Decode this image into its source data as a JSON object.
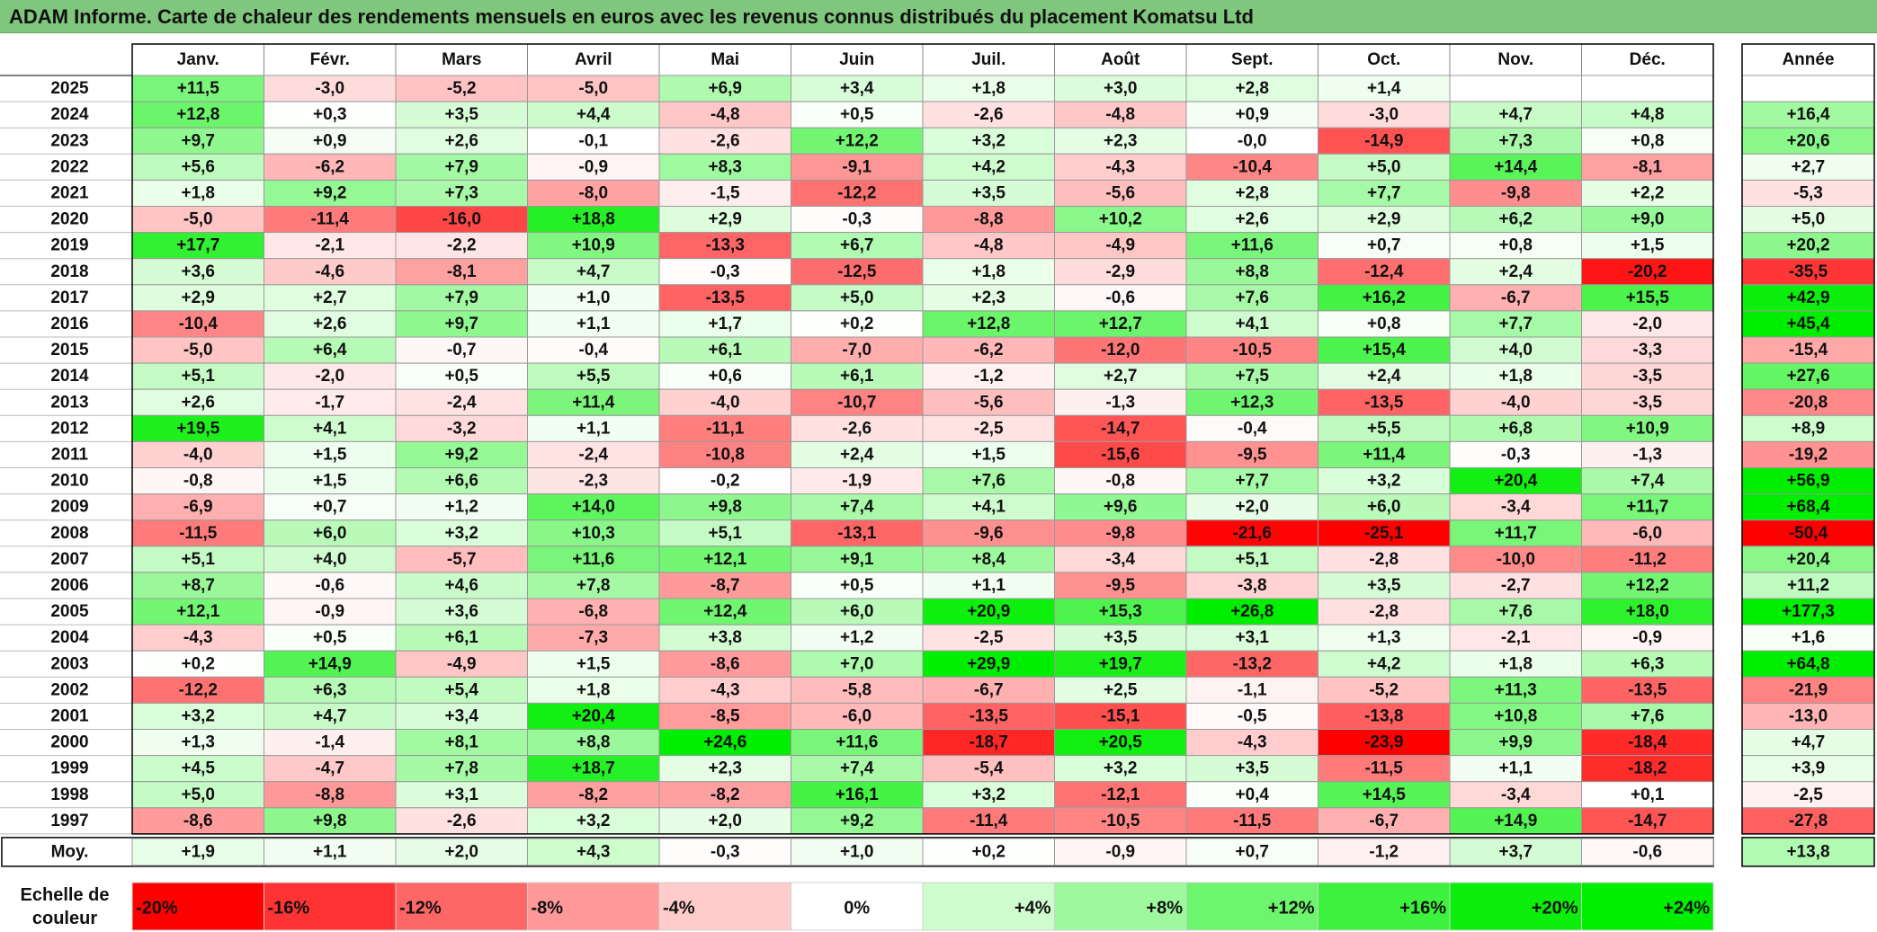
{
  "title": "ADAM Informe. Carte de chaleur des rendements mensuels en euros avec les revenus connus distribués du placement Komatsu Ltd",
  "colors": {
    "title_bg": "#80c77e",
    "strong_negative": "#ff0000",
    "strong_positive": "#00ee00",
    "neutral": "#ffffff"
  },
  "chart_data": {
    "type": "heatmap",
    "months": [
      "Janv.",
      "Févr.",
      "Mars",
      "Avril",
      "Mai",
      "Juin",
      "Juil.",
      "Août",
      "Sept.",
      "Oct.",
      "Nov.",
      "Déc."
    ],
    "annual_header": "Année",
    "rows": [
      {
        "year": "2025",
        "values": [
          "+11,5",
          "-3,0",
          "-5,2",
          "-5,0",
          "+6,9",
          "+3,4",
          "+1,8",
          "+3,0",
          "+2,8",
          "+1,4",
          "",
          ""
        ],
        "annual": ""
      },
      {
        "year": "2024",
        "values": [
          "+12,8",
          "+0,3",
          "+3,5",
          "+4,4",
          "-4,8",
          "+0,5",
          "-2,6",
          "-4,8",
          "+0,9",
          "-3,0",
          "+4,7",
          "+4,8"
        ],
        "annual": "+16,4"
      },
      {
        "year": "2023",
        "values": [
          "+9,7",
          "+0,9",
          "+2,6",
          "-0,1",
          "-2,6",
          "+12,2",
          "+3,2",
          "+2,3",
          "-0,0",
          "-14,9",
          "+7,3",
          "+0,8"
        ],
        "annual": "+20,6"
      },
      {
        "year": "2022",
        "values": [
          "+5,6",
          "-6,2",
          "+7,9",
          "-0,9",
          "+8,3",
          "-9,1",
          "+4,2",
          "-4,3",
          "-10,4",
          "+5,0",
          "+14,4",
          "-8,1"
        ],
        "annual": "+2,7"
      },
      {
        "year": "2021",
        "values": [
          "+1,8",
          "+9,2",
          "+7,3",
          "-8,0",
          "-1,5",
          "-12,2",
          "+3,5",
          "-5,6",
          "+2,8",
          "+7,7",
          "-9,8",
          "+2,2"
        ],
        "annual": "-5,3"
      },
      {
        "year": "2020",
        "values": [
          "-5,0",
          "-11,4",
          "-16,0",
          "+18,8",
          "+2,9",
          "-0,3",
          "-8,8",
          "+10,2",
          "+2,6",
          "+2,9",
          "+6,2",
          "+9,0"
        ],
        "annual": "+5,0"
      },
      {
        "year": "2019",
        "values": [
          "+17,7",
          "-2,1",
          "-2,2",
          "+10,9",
          "-13,3",
          "+6,7",
          "-4,8",
          "-4,9",
          "+11,6",
          "+0,7",
          "+0,8",
          "+1,5"
        ],
        "annual": "+20,2"
      },
      {
        "year": "2018",
        "values": [
          "+3,6",
          "-4,6",
          "-8,1",
          "+4,7",
          "-0,3",
          "-12,5",
          "+1,8",
          "-2,9",
          "+8,8",
          "-12,4",
          "+2,4",
          "-20,2"
        ],
        "annual": "-35,5"
      },
      {
        "year": "2017",
        "values": [
          "+2,9",
          "+2,7",
          "+7,9",
          "+1,0",
          "-13,5",
          "+5,0",
          "+2,3",
          "-0,6",
          "+7,6",
          "+16,2",
          "-6,7",
          "+15,5"
        ],
        "annual": "+42,9"
      },
      {
        "year": "2016",
        "values": [
          "-10,4",
          "+2,6",
          "+9,7",
          "+1,1",
          "+1,7",
          "+0,2",
          "+12,8",
          "+12,7",
          "+4,1",
          "+0,8",
          "+7,7",
          "-2,0"
        ],
        "annual": "+45,4"
      },
      {
        "year": "2015",
        "values": [
          "-5,0",
          "+6,4",
          "-0,7",
          "-0,4",
          "+6,1",
          "-7,0",
          "-6,2",
          "-12,0",
          "-10,5",
          "+15,4",
          "+4,0",
          "-3,3"
        ],
        "annual": "-15,4"
      },
      {
        "year": "2014",
        "values": [
          "+5,1",
          "-2,0",
          "+0,5",
          "+5,5",
          "+0,6",
          "+6,1",
          "-1,2",
          "+2,7",
          "+7,5",
          "+2,4",
          "+1,8",
          "-3,5"
        ],
        "annual": "+27,6"
      },
      {
        "year": "2013",
        "values": [
          "+2,6",
          "-1,7",
          "-2,4",
          "+11,4",
          "-4,0",
          "-10,7",
          "-5,6",
          "-1,3",
          "+12,3",
          "-13,5",
          "-4,0",
          "-3,5"
        ],
        "annual": "-20,8"
      },
      {
        "year": "2012",
        "values": [
          "+19,5",
          "+4,1",
          "-3,2",
          "+1,1",
          "-11,1",
          "-2,6",
          "-2,5",
          "-14,7",
          "-0,4",
          "+5,5",
          "+6,8",
          "+10,9"
        ],
        "annual": "+8,9"
      },
      {
        "year": "2011",
        "values": [
          "-4,0",
          "+1,5",
          "+9,2",
          "-2,4",
          "-10,8",
          "+2,4",
          "+1,5",
          "-15,6",
          "-9,5",
          "+11,4",
          "-0,3",
          "-1,3"
        ],
        "annual": "-19,2"
      },
      {
        "year": "2010",
        "values": [
          "-0,8",
          "+1,5",
          "+6,6",
          "-2,3",
          "-0,2",
          "-1,9",
          "+7,6",
          "-0,8",
          "+7,7",
          "+3,2",
          "+20,4",
          "+7,4"
        ],
        "annual": "+56,9"
      },
      {
        "year": "2009",
        "values": [
          "-6,9",
          "+0,7",
          "+1,2",
          "+14,0",
          "+9,8",
          "+7,4",
          "+4,1",
          "+9,6",
          "+2,0",
          "+6,0",
          "-3,4",
          "+11,7"
        ],
        "annual": "+68,4"
      },
      {
        "year": "2008",
        "values": [
          "-11,5",
          "+6,0",
          "+3,2",
          "+10,3",
          "+5,1",
          "-13,1",
          "-9,6",
          "-9,8",
          "-21,6",
          "-25,1",
          "+11,7",
          "-6,0"
        ],
        "annual": "-50,4"
      },
      {
        "year": "2007",
        "values": [
          "+5,1",
          "+4,0",
          "-5,7",
          "+11,6",
          "+12,1",
          "+9,1",
          "+8,4",
          "-3,4",
          "+5,1",
          "-2,8",
          "-10,0",
          "-11,2"
        ],
        "annual": "+20,4"
      },
      {
        "year": "2006",
        "values": [
          "+8,7",
          "-0,6",
          "+4,6",
          "+7,8",
          "-8,7",
          "+0,5",
          "+1,1",
          "-9,5",
          "-3,8",
          "+3,5",
          "-2,7",
          "+12,2"
        ],
        "annual": "+11,2"
      },
      {
        "year": "2005",
        "values": [
          "+12,1",
          "-0,9",
          "+3,6",
          "-6,8",
          "+12,4",
          "+6,0",
          "+20,9",
          "+15,3",
          "+26,8",
          "-2,8",
          "+7,6",
          "+18,0"
        ],
        "annual": "+177,3"
      },
      {
        "year": "2004",
        "values": [
          "-4,3",
          "+0,5",
          "+6,1",
          "-7,3",
          "+3,8",
          "+1,2",
          "-2,5",
          "+3,5",
          "+3,1",
          "+1,3",
          "-2,1",
          "-0,9"
        ],
        "annual": "+1,6"
      },
      {
        "year": "2003",
        "values": [
          "+0,2",
          "+14,9",
          "-4,9",
          "+1,5",
          "-8,6",
          "+7,0",
          "+29,9",
          "+19,7",
          "-13,2",
          "+4,2",
          "+1,8",
          "+6,3"
        ],
        "annual": "+64,8"
      },
      {
        "year": "2002",
        "values": [
          "-12,2",
          "+6,3",
          "+5,4",
          "+1,8",
          "-4,3",
          "-5,8",
          "-6,7",
          "+2,5",
          "-1,1",
          "-5,2",
          "+11,3",
          "-13,5"
        ],
        "annual": "-21,9"
      },
      {
        "year": "2001",
        "values": [
          "+3,2",
          "+4,7",
          "+3,4",
          "+20,4",
          "-8,5",
          "-6,0",
          "-13,5",
          "-15,1",
          "-0,5",
          "-13,8",
          "+10,8",
          "+7,6"
        ],
        "annual": "-13,0"
      },
      {
        "year": "2000",
        "values": [
          "+1,3",
          "-1,4",
          "+8,1",
          "+8,8",
          "+24,6",
          "+11,6",
          "-18,7",
          "+20,5",
          "-4,3",
          "-23,9",
          "+9,9",
          "-18,4"
        ],
        "annual": "+4,7"
      },
      {
        "year": "1999",
        "values": [
          "+4,5",
          "-4,7",
          "+7,8",
          "+18,7",
          "+2,3",
          "+7,4",
          "-5,4",
          "+3,2",
          "+3,5",
          "-11,5",
          "+1,1",
          "-18,2"
        ],
        "annual": "+3,9"
      },
      {
        "year": "1998",
        "values": [
          "+5,0",
          "-8,8",
          "+3,1",
          "-8,2",
          "-8,2",
          "+16,1",
          "+3,2",
          "-12,1",
          "+0,4",
          "+14,5",
          "-3,4",
          "+0,1"
        ],
        "annual": "-2,5"
      },
      {
        "year": "1997",
        "values": [
          "-8,6",
          "+9,8",
          "-2,6",
          "+3,2",
          "+2,0",
          "+9,2",
          "-11,4",
          "-10,5",
          "-11,5",
          "-6,7",
          "+14,9",
          "-14,7"
        ],
        "annual": "-27,8"
      }
    ],
    "average": {
      "label": "Moy.",
      "values": [
        "+1,9",
        "+1,1",
        "+2,0",
        "+4,3",
        "-0,3",
        "+1,0",
        "+0,2",
        "-0,9",
        "+0,7",
        "-1,2",
        "+3,7",
        "-0,6"
      ],
      "annual": "+13,8"
    },
    "color_scale": {
      "label_line1": "Echelle de",
      "label_line2": "couleur",
      "steps": [
        "-20%",
        "-16%",
        "-12%",
        "-8%",
        "-4%",
        "0%",
        "+4%",
        "+8%",
        "+12%",
        "+16%",
        "+20%",
        "+24%"
      ]
    }
  }
}
